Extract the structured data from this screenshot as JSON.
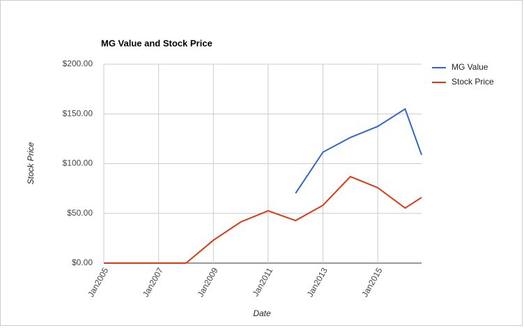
{
  "chart_data": {
    "type": "line",
    "title": "MG Value and Stock Price",
    "x_label": "Date",
    "y_label": "Stock Price",
    "x": [
      2005,
      2006,
      2007,
      2008,
      2009,
      2010,
      2011,
      2012,
      2013,
      2014,
      2015,
      2016,
      2016.6
    ],
    "series": [
      {
        "name": "MG Value",
        "color": "#3366cc",
        "values": [
          null,
          null,
          null,
          null,
          null,
          null,
          null,
          70.2,
          111.6,
          126.3,
          137.5,
          155,
          108.8
        ]
      },
      {
        "name": "Stock Price",
        "color": "#dc3912",
        "values": [
          0,
          0,
          0,
          0,
          23,
          41.4,
          52.6,
          42.8,
          58.2,
          87,
          75.8,
          55.4,
          66
        ]
      }
    ],
    "xlim": [
      2005,
      2016.6
    ],
    "xticks": [
      {
        "value": 2005,
        "label": "Jan2005"
      },
      {
        "value": 2007,
        "label": "Jan2007"
      },
      {
        "value": 2009,
        "label": "Jan2009"
      },
      {
        "value": 2011,
        "label": "Jan2011"
      },
      {
        "value": 2013,
        "label": "Jan2013"
      },
      {
        "value": 2015,
        "label": "Jan2015"
      }
    ],
    "ylim": [
      0,
      200
    ],
    "yticks": [
      {
        "value": 0,
        "label": "$0.00"
      },
      {
        "value": 50,
        "label": "$50.00"
      },
      {
        "value": 100,
        "label": "$100.00"
      },
      {
        "value": 150,
        "label": "$150.00"
      },
      {
        "value": 200,
        "label": "$200.00"
      }
    ],
    "grid": true,
    "legend": "right"
  }
}
